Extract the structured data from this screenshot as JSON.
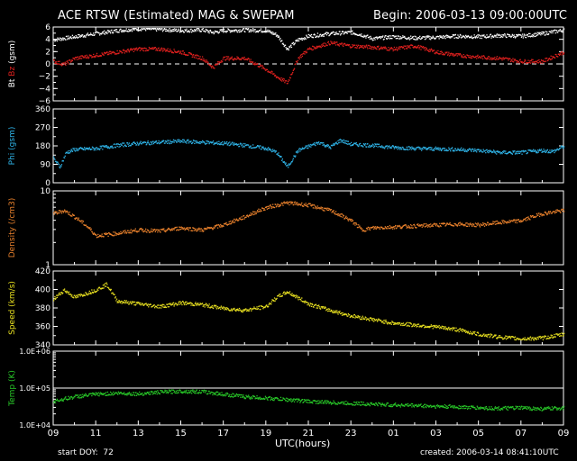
{
  "header": {
    "title": "ACE RTSW (Estimated) MAG & SWEPAM",
    "begin": "Begin: 2006-03-13 09:00:00UTC"
  },
  "footer": {
    "start_doy": "start DOY:  72",
    "created": "created: 2006-03-14 08:41:10UTC",
    "xlabel": "UTC(hours)"
  },
  "colors": {
    "bt": "#ffffff",
    "bz": "#e0201e",
    "phi": "#2fb4e8",
    "density": "#e8802c",
    "speed": "#e8e020",
    "temp": "#28c828",
    "frame": "#ffffff"
  },
  "chart_data": [
    {
      "type": "scatter",
      "ylabel_parts": [
        {
          "text": "Bt",
          "color": "#ffffff"
        },
        {
          "text": "Bz",
          "color": "#e0201e"
        },
        {
          "text": "(gsm)",
          "color": "#ffffff"
        }
      ],
      "ylim": [
        -6,
        6
      ],
      "yticks": [
        6,
        4,
        2,
        0,
        -2,
        -4,
        -6
      ],
      "ytick_labels": [
        "6",
        "4",
        "2",
        "0",
        "−2",
        "−4",
        "−6"
      ],
      "zero_line": true,
      "series": [
        {
          "name": "Bt",
          "color": "#ffffff",
          "x": [
            0,
            1,
            2,
            3,
            4,
            5,
            6,
            7,
            7.5,
            8,
            9,
            10,
            10.5,
            11,
            11.5,
            12,
            13,
            14,
            14.5,
            15,
            16,
            17,
            18,
            19,
            20,
            21,
            22,
            23,
            24
          ],
          "y": [
            4,
            4.5,
            5,
            5.5,
            5.8,
            5.7,
            5.5,
            5.6,
            5.2,
            5.5,
            5.6,
            5.5,
            4.8,
            2.5,
            4,
            4.6,
            5,
            5.2,
            4.8,
            4.2,
            4.5,
            4.3,
            4.4,
            4.6,
            4.5,
            4.7,
            4.6,
            5,
            5.6
          ]
        },
        {
          "name": "Bz",
          "color": "#e0201e",
          "x": [
            0,
            0.5,
            1,
            2,
            3,
            4,
            5,
            6,
            7,
            7.5,
            8,
            9,
            10,
            10.5,
            11,
            11.5,
            12,
            13,
            14,
            15,
            16,
            17,
            18,
            19,
            20,
            21,
            22,
            23,
            24
          ],
          "y": [
            0.5,
            0,
            1,
            1.5,
            2,
            2.5,
            2.5,
            2,
            1,
            -0.5,
            1,
            1,
            -0.8,
            -2,
            -3,
            1,
            2.5,
            3.5,
            3,
            2.8,
            2.5,
            3,
            2,
            1.5,
            1.2,
            1,
            0.5,
            0.5,
            2
          ]
        }
      ]
    },
    {
      "type": "scatter",
      "ylabel": "Phi (gsm)",
      "ylabel_color": "#2fb4e8",
      "ylim": [
        0,
        360
      ],
      "yticks": [
        360,
        270,
        180,
        90,
        0
      ],
      "ytick_labels": [
        "360",
        "270",
        "180",
        "90",
        "0"
      ],
      "series": [
        {
          "color": "#2fb4e8",
          "x": [
            0,
            0.3,
            0.6,
            1,
            2,
            3,
            4,
            5,
            6,
            7,
            8,
            9,
            10,
            10.5,
            11,
            11.5,
            12,
            12.5,
            13,
            13.5,
            14,
            15,
            16,
            17,
            18,
            19,
            20,
            21,
            22,
            23,
            23.5,
            24
          ],
          "y": [
            120,
            80,
            150,
            165,
            170,
            185,
            195,
            200,
            205,
            200,
            195,
            185,
            170,
            150,
            80,
            160,
            180,
            200,
            175,
            210,
            190,
            185,
            175,
            170,
            168,
            165,
            160,
            150,
            150,
            160,
            155,
            180
          ]
        }
      ]
    },
    {
      "type": "scatter",
      "ylabel": "Density (/cm3)",
      "ylabel_color": "#e8802c",
      "yscale": "log",
      "ylim": [
        1,
        10
      ],
      "yticks": [
        10,
        1
      ],
      "ytick_labels": [
        "10",
        "1"
      ],
      "series": [
        {
          "color": "#e8802c",
          "x": [
            0,
            0.5,
            1,
            2,
            3,
            4,
            5,
            6,
            7,
            8,
            9,
            10,
            11,
            12,
            13,
            14,
            14.5,
            15,
            16,
            17,
            18,
            19,
            20,
            21,
            22,
            23,
            24
          ],
          "y": [
            5,
            5.5,
            4.5,
            2.5,
            2.7,
            3,
            2.9,
            3.2,
            3,
            3.5,
            4.5,
            6,
            7,
            6.5,
            5.5,
            4,
            3,
            3.2,
            3.3,
            3.4,
            3.5,
            3.6,
            3.5,
            3.8,
            4,
            5,
            5.5
          ]
        }
      ]
    },
    {
      "type": "scatter",
      "ylabel": "Speed (km/s)",
      "ylabel_color": "#e8e020",
      "ylim": [
        340,
        420
      ],
      "yticks": [
        420,
        400,
        380,
        360,
        340
      ],
      "ytick_labels": [
        "420",
        "400",
        "380",
        "360",
        "340"
      ],
      "series": [
        {
          "color": "#e8e020",
          "x": [
            0,
            0.5,
            1,
            2,
            2.5,
            3,
            4,
            5,
            6,
            7,
            8,
            9,
            10,
            10.5,
            11,
            12,
            13,
            14,
            15,
            16,
            17,
            18,
            19,
            20,
            21,
            22,
            23,
            24
          ],
          "y": [
            390,
            400,
            392,
            400,
            406,
            388,
            385,
            382,
            386,
            384,
            380,
            378,
            382,
            392,
            398,
            385,
            378,
            372,
            368,
            364,
            362,
            360,
            357,
            352,
            349,
            347,
            348,
            352
          ]
        }
      ]
    },
    {
      "type": "scatter",
      "ylabel": "Temp (K)",
      "ylabel_color": "#28c828",
      "yscale": "log",
      "ylim": [
        10000,
        1000000
      ],
      "yticks": [
        1000000,
        100000,
        10000
      ],
      "ytick_labels": [
        "1.0E+06",
        "1.0E+05",
        "1.0E+04"
      ],
      "series": [
        {
          "color": "#28c828",
          "x": [
            0,
            1,
            2,
            3,
            4,
            5,
            6,
            7,
            8,
            9,
            10,
            11,
            12,
            13,
            14,
            15,
            16,
            17,
            18,
            19,
            20,
            21,
            22,
            23,
            24
          ],
          "y": [
            45000,
            60000,
            70000,
            75000,
            72000,
            80000,
            85000,
            82000,
            70000,
            60000,
            55000,
            50000,
            45000,
            42000,
            40000,
            38000,
            36000,
            35000,
            33000,
            32000,
            30000,
            29000,
            30000,
            28000,
            30000
          ]
        }
      ]
    }
  ],
  "x_axis": {
    "xlim": [
      0,
      24
    ],
    "tick_hours": [
      0,
      2,
      4,
      6,
      8,
      10,
      12,
      14,
      16,
      18,
      20,
      22,
      24
    ],
    "tick_labels": [
      "09",
      "11",
      "13",
      "15",
      "17",
      "19",
      "21",
      "23",
      "01",
      "03",
      "05",
      "07",
      "09"
    ]
  }
}
